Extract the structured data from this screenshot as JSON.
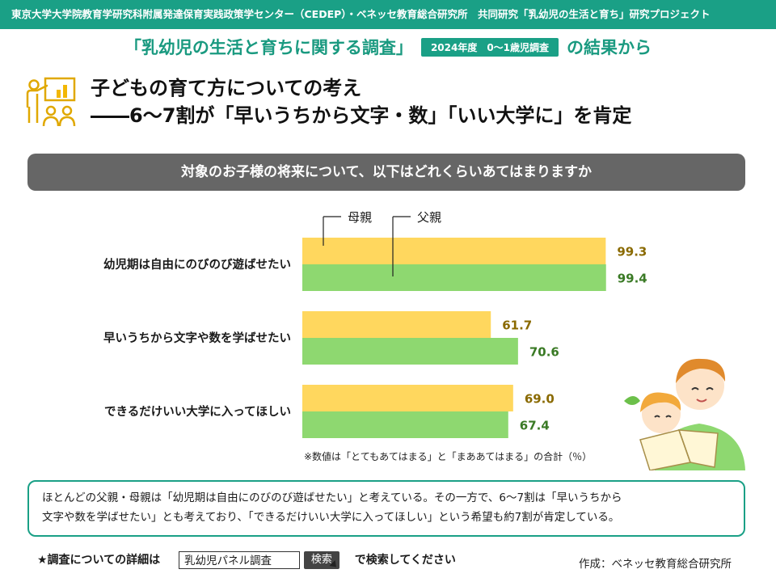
{
  "header": {
    "banner": "東京大学大学院教育学研究科附属発達保育実践政策学センター（CEDEP）・ベネッセ教育総合研究所　共同研究「乳幼児の生活と育ち」研究プロジェクト",
    "survey_title": "「乳幼児の生活と育ちに関する調査」",
    "survey_badge": "2024年度　0～1歳児調査",
    "survey_suffix": "の結果から"
  },
  "headline": {
    "line1": "子どもの育て方についての考え",
    "line2": "――6～7割が「早いうちから文字・数」「いい大学に」を肯定"
  },
  "question": "対象のお子様の将来について、以下はどれくらいあてはまりますか",
  "chart_data": {
    "type": "bar",
    "orientation": "horizontal",
    "categories": [
      "幼児期は自由にのびのび遊ばせたい",
      "早いうちから文字や数を学ばせたい",
      "できるだけいい大学に入ってほしい"
    ],
    "series": [
      {
        "name": "母親",
        "values": [
          99.3,
          61.7,
          69.0
        ],
        "labels": [
          "99.3",
          "61.7",
          "69.0"
        ],
        "color": "#ffd75e",
        "label_color": "#8a6a00"
      },
      {
        "name": "父親",
        "values": [
          99.4,
          70.6,
          67.4
        ],
        "labels": [
          "99.4",
          "70.6",
          "67.4"
        ],
        "color": "#8ed870",
        "label_color": "#3a7a25"
      }
    ],
    "xlim": [
      0,
      100
    ],
    "legend_placement": "top, with leader lines to the first pair of bars",
    "grid": false,
    "note": "※数値は「とてもあてはまる」と「まああてはまる」の合計（％）"
  },
  "summary": {
    "line1": "ほとんどの父親・母親は「幼児期は自由にのびのび遊ばせたい」と考えている。その一方で、6～7割は「早いうちから",
    "line2": "文字や数を学ばせたい」とも考えており、「できるだけいい大学に入ってほしい」という希望も約7割が肯定している。"
  },
  "search": {
    "prefix": "★調査についての詳細は",
    "query": "乳幼児パネル調査",
    "button": "検索",
    "suffix": "で検索してください"
  },
  "credit": "作成：ベネッセ教育総合研究所",
  "colors": {
    "accent": "#1aa086",
    "question_bg": "#666666",
    "mother": "#ffd75e",
    "father": "#8ed870"
  },
  "icons": {
    "headline_icon": "teacher-presentation-icon",
    "illustration": "parent-reading-to-child-illustration"
  }
}
